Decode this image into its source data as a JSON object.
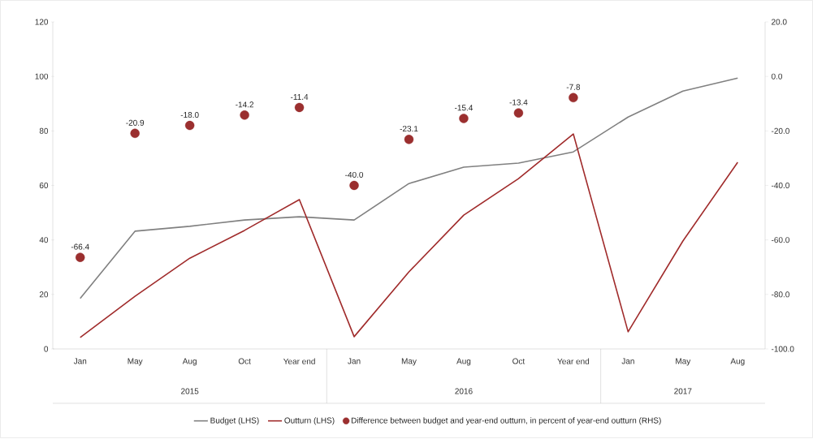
{
  "chart_data": {
    "type": "line",
    "categories": [
      "Jan",
      "May",
      "Aug",
      "Oct",
      "Year end",
      "Jan",
      "May",
      "Aug",
      "Oct",
      "Year end",
      "Jan",
      "May",
      "Aug"
    ],
    "series": [
      {
        "name": "Budget (LHS)",
        "marker": "none",
        "color": "#808080",
        "values": [
          18.5,
          43.2,
          45.0,
          47.3,
          48.5,
          47.3,
          60.7,
          66.7,
          68.2,
          72.3,
          85.1,
          94.6,
          99.4
        ]
      },
      {
        "name": "Outturn (LHS)",
        "marker": "none",
        "color": "#a02b2b",
        "values": [
          4.2,
          19.3,
          33.3,
          43.5,
          54.8,
          4.5,
          28.3,
          49.1,
          62.5,
          78.9,
          6.3,
          39.6,
          68.5
        ]
      },
      {
        "name": "Difference between budget and year-end outturn, in percent of year-end outturn (RHS)",
        "type": "scatter",
        "axis": "y2",
        "marker": "circle",
        "color": "#9b2f2f",
        "values": [
          -66.4,
          -20.9,
          -18.0,
          -14.2,
          -11.4,
          -40.0,
          -23.1,
          -15.4,
          -13.4,
          -7.8,
          null,
          null,
          null
        ],
        "value_labels": [
          "-66.4",
          "-20.9",
          "-18.0",
          "-14.2",
          "-11.4",
          "-40.0",
          "-23.1",
          "-15.4",
          "-13.4",
          "-7.8",
          null,
          null,
          null
        ]
      }
    ],
    "ylim": [
      0,
      120
    ],
    "yticks": [
      0,
      20,
      40,
      60,
      80,
      100,
      120
    ],
    "y2lim": [
      -100,
      20
    ],
    "y2ticks": [
      {
        "value": -100,
        "label": "-100.0"
      },
      {
        "value": -80,
        "label": "-80.0"
      },
      {
        "value": -60,
        "label": "-60.0"
      },
      {
        "value": -40,
        "label": "-40.0"
      },
      {
        "value": -20,
        "label": "-20.0"
      },
      {
        "value": 0,
        "label": "0.0"
      },
      {
        "value": 20,
        "label": "20.0"
      }
    ],
    "annotations": [
      "2015",
      "2016",
      "2017"
    ],
    "legend": "bottom"
  }
}
